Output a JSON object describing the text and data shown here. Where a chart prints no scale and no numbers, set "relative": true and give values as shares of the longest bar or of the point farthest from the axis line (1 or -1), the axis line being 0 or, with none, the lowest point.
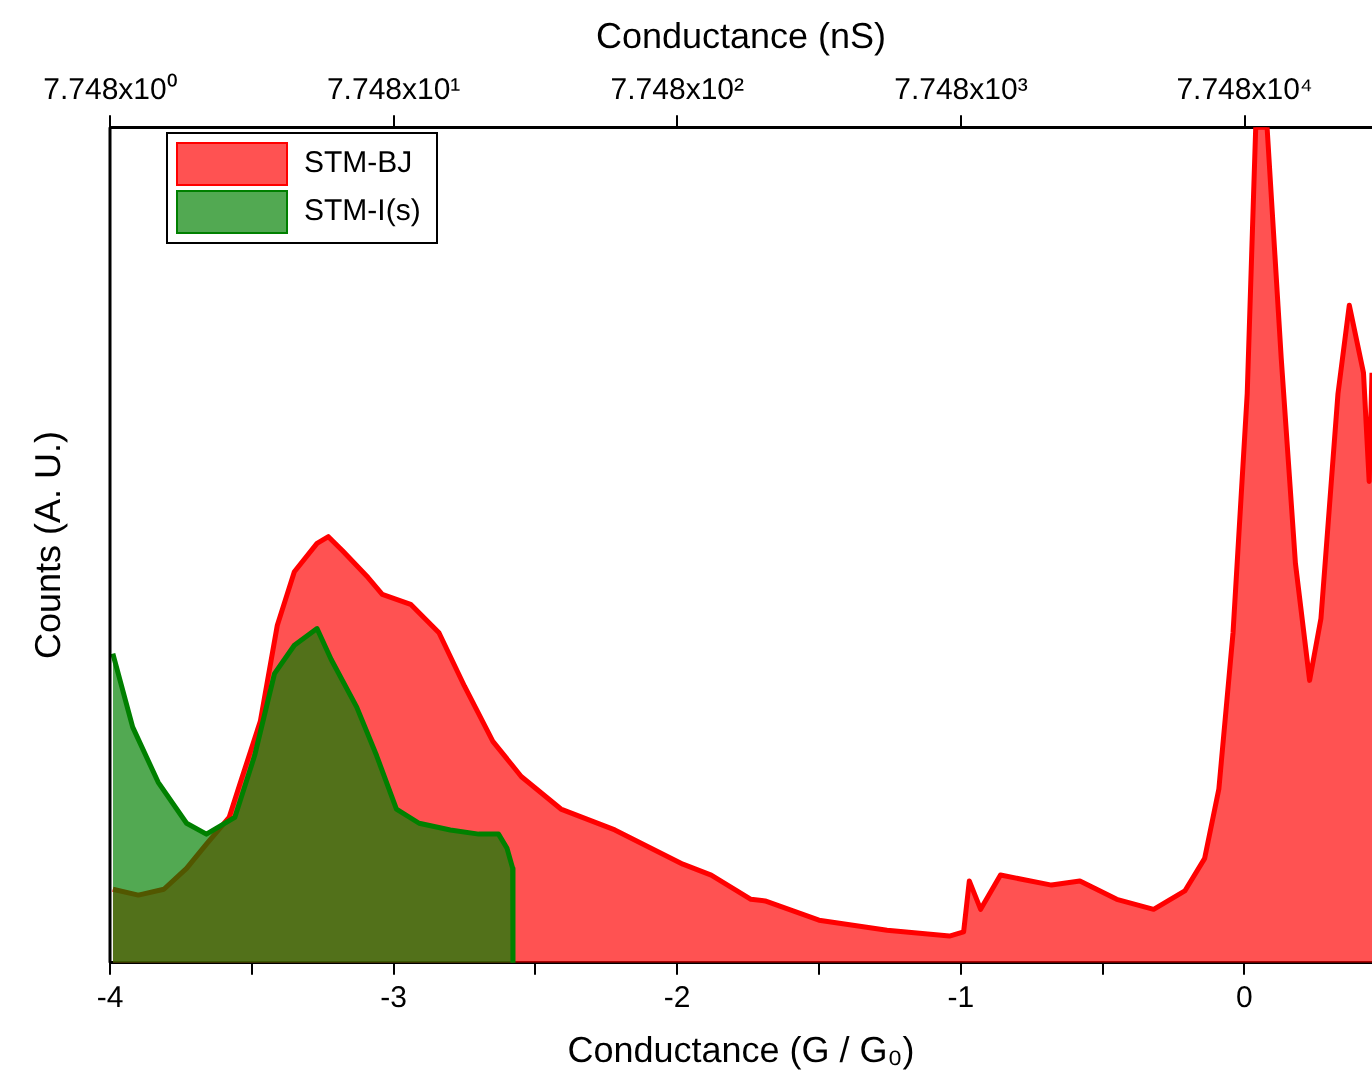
{
  "chart_data": {
    "type": "area",
    "xlabel": "Conductance (G / G₀)",
    "ylabel": "Counts (A. U.)",
    "x2label": "Conductance (nS)",
    "relative": true,
    "grid": false,
    "legend": "top left",
    "marker": "none",
    "tick_labels": "x",
    "xlim": [
      -4,
      0.45
    ],
    "xticks": [
      -4,
      {
        "value": -3.5,
        "label": null
      },
      -3,
      {
        "value": -2.5,
        "label": null
      },
      -2,
      {
        "value": -1.5,
        "label": null
      },
      -1,
      {
        "value": -0.5,
        "label": null
      },
      0
    ],
    "log": "x2",
    "x2lim": [
      7.748,
      218000
    ],
    "x2ticks": [
      {
        "value": 7.748,
        "label": "7.748x10⁰"
      },
      {
        "value": 77.48,
        "label": "7.748x10¹"
      },
      {
        "value": 774.8,
        "label": "7.748x10²"
      },
      {
        "value": 7748,
        "label": "7.748x10³"
      },
      {
        "value": 77480,
        "label": "7.748x10⁴"
      }
    ],
    "series": [
      {
        "name": "STM-BJ",
        "color": "#ff0000",
        "x": [
          -3.99,
          -3.9,
          -3.81,
          -3.73,
          -3.66,
          -3.58,
          -3.54,
          -3.47,
          -3.41,
          -3.35,
          -3.27,
          -3.23,
          -3.18,
          -3.09,
          -3.04,
          -2.94,
          -2.84,
          -2.75,
          -2.65,
          -2.55,
          -2.41,
          -2.22,
          -1.98,
          -1.88,
          -1.74,
          -1.69,
          -1.5,
          -1.26,
          -1.04,
          -0.99,
          -0.97,
          -0.93,
          -0.86,
          -0.68,
          -0.58,
          -0.45,
          -0.32,
          -0.21,
          -0.14,
          -0.09,
          -0.04,
          0.01,
          0.04,
          0.08,
          0.13,
          0.18,
          0.23,
          0.27,
          0.33,
          0.37,
          0.42,
          0.44,
          0.45
        ],
        "values": [
          0.088,
          0.081,
          0.088,
          0.113,
          0.142,
          0.174,
          0.216,
          0.289,
          0.404,
          0.468,
          0.502,
          0.51,
          0.493,
          0.461,
          0.441,
          0.429,
          0.395,
          0.331,
          0.265,
          0.223,
          0.184,
          0.159,
          0.118,
          0.105,
          0.076,
          0.074,
          0.051,
          0.039,
          0.032,
          0.037,
          0.098,
          0.064,
          0.105,
          0.093,
          0.098,
          0.076,
          0.064,
          0.086,
          0.125,
          0.208,
          0.395,
          0.681,
          1,
          1,
          0.723,
          0.478,
          0.338,
          0.412,
          0.681,
          0.787,
          0.706,
          0.576,
          0.706
        ]
      },
      {
        "name": "STM-I(s)",
        "color": "#008000",
        "x": [
          -3.99,
          -3.92,
          -3.83,
          -3.73,
          -3.66,
          -3.56,
          -3.49,
          -3.42,
          -3.35,
          -3.27,
          -3.22,
          -3.13,
          -3.06,
          -2.99,
          -2.91,
          -2.8,
          -2.7,
          -2.63,
          -2.6,
          -2.58,
          -2.579
        ],
        "values": [
          0.37,
          0.282,
          0.216,
          0.167,
          0.154,
          0.174,
          0.248,
          0.346,
          0.38,
          0.4,
          0.363,
          0.306,
          0.248,
          0.184,
          0.167,
          0.159,
          0.154,
          0.154,
          0.137,
          0.113,
          0
        ]
      }
    ]
  }
}
